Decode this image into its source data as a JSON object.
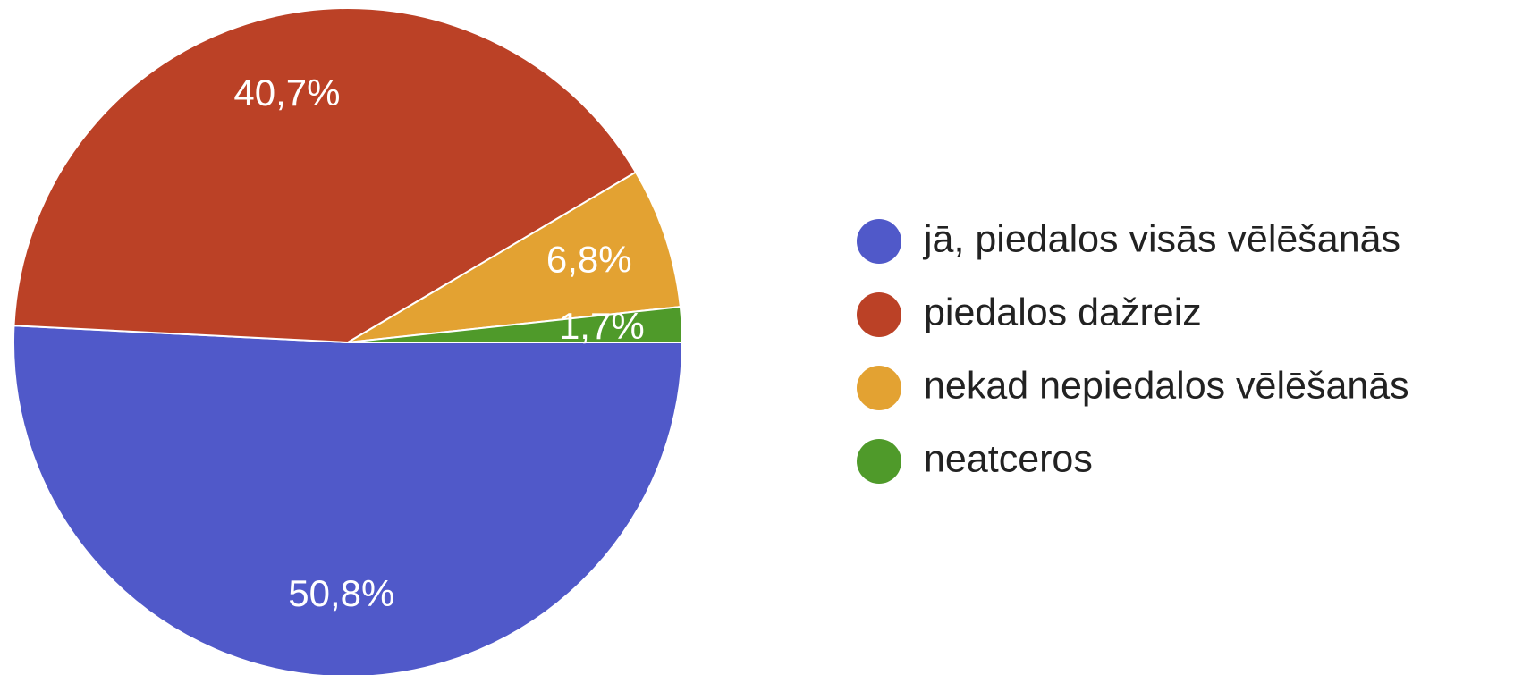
{
  "chart_data": {
    "type": "pie",
    "categories": [
      "jā, piedalos visās vēlēšanās",
      "piedalos dažreiz",
      "nekad nepiedalos vēlēšanās",
      "neatceros"
    ],
    "values": [
      50.8,
      40.7,
      6.8,
      1.7
    ],
    "value_labels": [
      "50,8%",
      "40,7%",
      "6,8%",
      "1,7%"
    ],
    "colors": [
      "#5059c9",
      "#bb4126",
      "#e3a232",
      "#4f9a2a"
    ],
    "legend": "right"
  }
}
